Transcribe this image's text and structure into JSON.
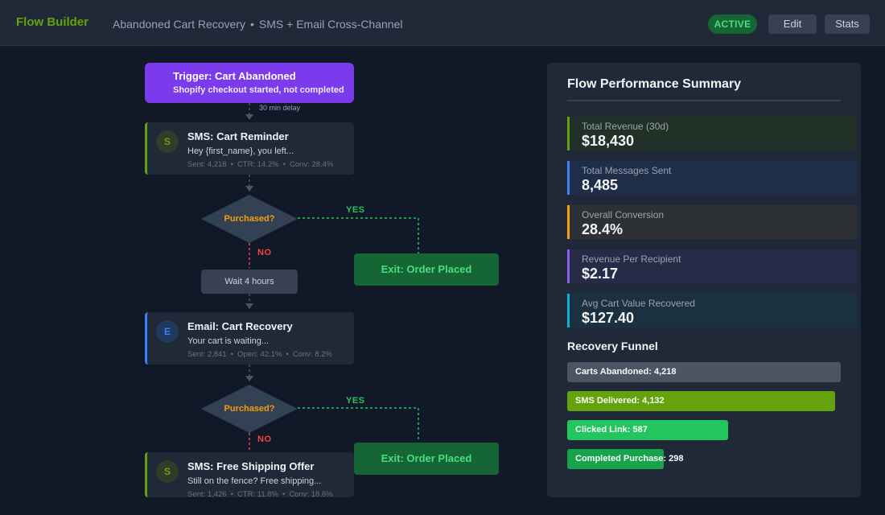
{
  "header": {
    "brand": "Flow Builder",
    "flow_name": "Abandoned Cart Recovery",
    "separator": "•",
    "flow_type": "SMS + Email Cross-Channel",
    "status": "ACTIVE",
    "edit_label": "Edit",
    "stats_label": "Stats"
  },
  "flow": {
    "trigger": {
      "title": "Trigger: Cart Abandoned",
      "subtitle": "Shopify checkout started, not completed"
    },
    "delay_label": "30 min delay",
    "sms1": {
      "icon": "S",
      "title": "SMS: Cart Reminder",
      "message": "Hey {first_name}, you left...",
      "stats": [
        "Sent: 4,218",
        "CTR: 14.2%",
        "Conv: 28.4%"
      ]
    },
    "decision1": {
      "label": "Purchased?",
      "yes": "YES",
      "no": "NO"
    },
    "exit1": "Exit: Order Placed",
    "wait": "Wait 4 hours",
    "email": {
      "icon": "E",
      "title": "Email: Cart Recovery",
      "message": "Your cart is waiting...",
      "stats": [
        "Sent: 2,841",
        "Open: 42.1%",
        "Conv: 8.2%"
      ]
    },
    "decision2": {
      "label": "Purchased?",
      "yes": "YES",
      "no": "NO"
    },
    "exit2": "Exit: Order Placed",
    "sms2": {
      "icon": "S",
      "title": "SMS: Free Shipping Offer",
      "message": "Still on the fence? Free shipping...",
      "stats": [
        "Sent: 1,426",
        "CTR: 11.8%",
        "Conv: 18.6%"
      ]
    },
    "stat_separator": "•"
  },
  "summary": {
    "title": "Flow Performance Summary",
    "metrics": [
      {
        "label": "Total Revenue (30d)",
        "value": "$18,430",
        "accent": "#65a30d",
        "bg": "#223128"
      },
      {
        "label": "Total Messages Sent",
        "value": "8,485",
        "accent": "#3b82f6",
        "bg": "#1e2d48"
      },
      {
        "label": "Overall Conversion",
        "value": "28.4%",
        "accent": "#f59e0b",
        "bg": "#2d3035"
      },
      {
        "label": "Revenue Per Recipient",
        "value": "$2.17",
        "accent": "#8b5cf6",
        "bg": "#262b48"
      },
      {
        "label": "Avg Cart Value Recovered",
        "value": "$127.40",
        "accent": "#06b6d4",
        "bg": "#1b3140"
      }
    ],
    "funnel_title": "Recovery Funnel",
    "funnel": [
      {
        "label": "Carts Abandoned: 4,218",
        "fraction": 1.0,
        "color": "#4b5563"
      },
      {
        "label": "SMS Delivered: 4,132",
        "fraction": 0.9796,
        "color": "#65a30d"
      },
      {
        "label": "Clicked Link: 587",
        "fraction": 0.588,
        "color": "#22c55e"
      },
      {
        "label": "Completed Purchase: 298",
        "fraction": 0.353,
        "color": "#16a34a"
      }
    ]
  }
}
